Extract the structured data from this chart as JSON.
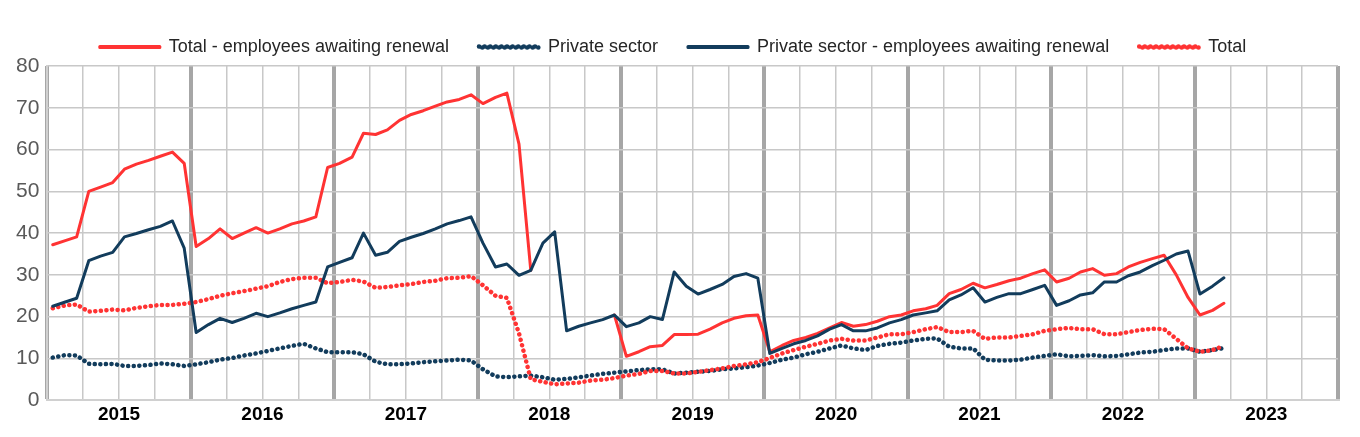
{
  "chart_data": {
    "type": "line",
    "x": [
      "2015-01-15",
      "2015-02-15",
      "2015-03-15",
      "2015-04-15",
      "2015-05-15",
      "2015-06-15",
      "2015-07-15",
      "2015-08-15",
      "2015-09-15",
      "2015-10-15",
      "2015-11-15",
      "2015-12-15",
      "2016-01-15",
      "2016-02-15",
      "2016-03-15",
      "2016-04-15",
      "2016-05-15",
      "2016-06-15",
      "2016-07-15",
      "2016-08-15",
      "2016-09-15",
      "2016-10-15",
      "2016-11-15",
      "2016-12-15",
      "2017-01-15",
      "2017-02-15",
      "2017-03-15",
      "2017-04-15",
      "2017-05-15",
      "2017-06-15",
      "2017-07-15",
      "2017-08-15",
      "2017-09-15",
      "2017-10-15",
      "2017-11-15",
      "2017-12-15",
      "2018-01-15",
      "2018-02-15",
      "2018-03-15",
      "2018-04-15",
      "2018-05-15",
      "2018-06-15",
      "2018-07-15",
      "2018-08-15",
      "2018-09-15",
      "2018-10-15",
      "2018-11-15",
      "2018-12-15",
      "2019-01-15",
      "2019-02-15",
      "2019-03-15",
      "2019-04-15",
      "2019-05-15",
      "2019-06-15",
      "2019-07-15",
      "2019-08-15",
      "2019-09-15",
      "2019-10-15",
      "2019-11-15",
      "2019-12-15",
      "2020-01-15",
      "2020-02-15",
      "2020-03-15",
      "2020-04-15",
      "2020-05-15",
      "2020-06-15",
      "2020-07-15",
      "2020-08-15",
      "2020-09-15",
      "2020-10-15",
      "2020-11-15",
      "2020-12-15",
      "2021-01-15",
      "2021-02-15",
      "2021-03-15",
      "2021-04-15",
      "2021-05-15",
      "2021-06-15",
      "2021-07-15",
      "2021-08-15",
      "2021-09-15",
      "2021-10-15",
      "2021-11-15",
      "2021-12-15",
      "2022-01-15",
      "2022-02-15",
      "2022-03-15",
      "2022-04-15",
      "2022-05-15",
      "2022-06-15",
      "2022-07-15",
      "2022-08-15",
      "2022-09-15",
      "2022-10-15",
      "2022-11-15",
      "2022-12-15",
      "2023-01-15",
      "2023-02-15",
      "2023-03-15"
    ],
    "series": [
      {
        "name": "Total - employees awaiting renewal",
        "color": "#ff3333",
        "line_style": "solid",
        "values": [
          37.2,
          38.2,
          39.1,
          50,
          51,
          52.1,
          55.3,
          56.5,
          57.4,
          58.4,
          59.4,
          56.7,
          36.8,
          38.7,
          41,
          38.7,
          40,
          41.3,
          40,
          41,
          42.2,
          42.9,
          43.9,
          55.7,
          56.7,
          58.2,
          63.9,
          63.6,
          64.7,
          67,
          68.4,
          69.3,
          70.4,
          71.4,
          72,
          73.1,
          71,
          72.5,
          73.5,
          61.3,
          31.1,
          null,
          null,
          null,
          null,
          null,
          null,
          20.4,
          10.5,
          11.6,
          12.8,
          13.1,
          15.7,
          15.7,
          15.8,
          17,
          18.5,
          19.6,
          20.2,
          20.4,
          11.6,
          13.1,
          14.3,
          15,
          16,
          17.3,
          18.6,
          17.7,
          18.1,
          18.9,
          20,
          20.4,
          21.4,
          21.9,
          22.7,
          25.5,
          26.5,
          28,
          26.9,
          27.7,
          28.6,
          29.2,
          30.3,
          31.2,
          28.3,
          29.2,
          30.7,
          31.5,
          29.9,
          30.3,
          31.9,
          33,
          33.9,
          34.7,
          30,
          24.6,
          20.4,
          21.5,
          23.2
        ]
      },
      {
        "name": "Private sector",
        "color": "#123c5c",
        "line_style": "dotted",
        "values": [
          10.2,
          10.8,
          10.7,
          8.7,
          8.6,
          8.7,
          8.2,
          8.2,
          8.4,
          8.8,
          8.6,
          8.2,
          8.6,
          9.1,
          9.7,
          10.1,
          10.7,
          11.2,
          11.8,
          12.4,
          13,
          13.5,
          12.4,
          11.5,
          11.5,
          11.5,
          11,
          9.2,
          8.6,
          8.6,
          8.8,
          9.1,
          9.3,
          9.5,
          9.7,
          9.5,
          7.4,
          5.7,
          5.5,
          5.7,
          5.9,
          5.5,
          4.9,
          5.1,
          5.5,
          5.9,
          6.3,
          6.6,
          6.9,
          7.2,
          7.4,
          7.4,
          6.4,
          6.6,
          6.8,
          7,
          7.4,
          7.6,
          7.9,
          8.3,
          8.9,
          9.7,
          10.2,
          11,
          11.6,
          12.4,
          13.1,
          12.4,
          12,
          13,
          13.5,
          13.8,
          14.3,
          14.7,
          14.8,
          12.8,
          12.4,
          12.4,
          9.7,
          9.5,
          9.5,
          9.7,
          10.2,
          10.6,
          11,
          10.5,
          10.6,
          10.8,
          10.5,
          10.6,
          11,
          11.4,
          11.6,
          12,
          12.4,
          12.4,
          11.6,
          12,
          12.5
        ]
      },
      {
        "name": "Private sector - employees awaiting renewal",
        "color": "#123c5c",
        "line_style": "solid",
        "values": [
          22.5,
          23.5,
          24.4,
          33.4,
          34.5,
          35.4,
          39.1,
          39.9,
          40.8,
          41.6,
          42.9,
          36.4,
          16.2,
          18.1,
          19.6,
          18.6,
          19.6,
          20.8,
          20,
          20.9,
          21.9,
          22.7,
          23.5,
          31.9,
          33,
          34.1,
          40,
          34.7,
          35.4,
          38,
          39,
          39.9,
          41,
          42.2,
          43,
          43.9,
          37.6,
          31.9,
          32.6,
          29.9,
          31.1,
          37.6,
          40.3,
          16.6,
          17.7,
          18.5,
          19.3,
          20.4,
          17.6,
          18.5,
          20,
          19.3,
          30.7,
          27.3,
          25.4,
          26.5,
          27.7,
          29.6,
          30.3,
          29.2,
          11.2,
          12.4,
          13.5,
          14.3,
          15.4,
          17,
          18.1,
          16.6,
          16.6,
          17.3,
          18.5,
          19.3,
          20.4,
          20.9,
          21.4,
          24,
          25.2,
          26.9,
          23.5,
          24.6,
          25.5,
          25.5,
          26.5,
          27.5,
          22.7,
          23.8,
          25.2,
          25.7,
          28.3,
          28.3,
          29.8,
          30.7,
          32.2,
          33.5,
          35,
          35.7,
          25.4,
          27.3,
          29.3
        ]
      },
      {
        "name": "Total",
        "color": "#ff3333",
        "line_style": "dotted",
        "values": [
          22,
          22.7,
          22.9,
          21.2,
          21.4,
          21.7,
          21.5,
          22.1,
          22.5,
          22.8,
          22.8,
          23.1,
          23.5,
          24.2,
          25,
          25.6,
          26.1,
          26.7,
          27.3,
          28.3,
          29,
          29.3,
          29.3,
          28,
          28.3,
          28.8,
          28.4,
          26.9,
          27.1,
          27.5,
          27.8,
          28.3,
          28.6,
          29.2,
          29.3,
          29.7,
          27.5,
          25,
          24.5,
          16,
          5,
          4.4,
          3.8,
          4,
          4.2,
          4.7,
          4.9,
          5.3,
          5.9,
          6.3,
          7,
          7,
          6.4,
          6.4,
          6.8,
          7.2,
          7.6,
          8.2,
          8.6,
          9.1,
          10.1,
          11.2,
          12,
          12.8,
          13.5,
          14.3,
          14.7,
          14.3,
          14.3,
          15,
          15.8,
          15.8,
          16.3,
          17,
          17.5,
          16.3,
          16.3,
          16.6,
          14.7,
          15,
          15,
          15.4,
          15.8,
          16.6,
          17,
          17.3,
          17,
          17,
          15.8,
          15.8,
          16.3,
          16.8,
          17.1,
          17,
          14.7,
          12.4,
          11.6,
          12,
          13
        ]
      }
    ],
    "xlim": [
      "2015-01-01",
      "2024-01-01"
    ],
    "xticks": [
      {
        "value": "2015-01-01",
        "label": null
      },
      {
        "value": "2015-04-01",
        "label": null
      },
      {
        "value": "2015-07-01",
        "label": "2015"
      },
      {
        "value": "2015-10-01",
        "label": null
      },
      {
        "value": "2016-01-01",
        "label": null
      },
      {
        "value": "2016-04-01",
        "label": null
      },
      {
        "value": "2016-07-01",
        "label": "2016"
      },
      {
        "value": "2016-10-01",
        "label": null
      },
      {
        "value": "2017-01-01",
        "label": null
      },
      {
        "value": "2017-04-01",
        "label": null
      },
      {
        "value": "2017-07-01",
        "label": "2017"
      },
      {
        "value": "2017-10-01",
        "label": null
      },
      {
        "value": "2018-01-01",
        "label": null
      },
      {
        "value": "2018-04-01",
        "label": null
      },
      {
        "value": "2018-07-01",
        "label": "2018"
      },
      {
        "value": "2018-10-01",
        "label": null
      },
      {
        "value": "2019-01-01",
        "label": null
      },
      {
        "value": "2019-04-01",
        "label": null
      },
      {
        "value": "2019-07-01",
        "label": "2019"
      },
      {
        "value": "2019-10-01",
        "label": null
      },
      {
        "value": "2020-01-01",
        "label": null
      },
      {
        "value": "2020-04-01",
        "label": null
      },
      {
        "value": "2020-07-01",
        "label": "2020"
      },
      {
        "value": "2020-10-01",
        "label": null
      },
      {
        "value": "2021-01-01",
        "label": null
      },
      {
        "value": "2021-04-01",
        "label": null
      },
      {
        "value": "2021-07-01",
        "label": "2021"
      },
      {
        "value": "2021-10-01",
        "label": null
      },
      {
        "value": "2022-01-01",
        "label": null
      },
      {
        "value": "2022-04-01",
        "label": null
      },
      {
        "value": "2022-07-01",
        "label": "2022"
      },
      {
        "value": "2022-10-01",
        "label": null
      },
      {
        "value": "2023-01-01",
        "label": null
      },
      {
        "value": "2023-04-01",
        "label": null
      },
      {
        "value": "2023-07-01",
        "label": "2023"
      },
      {
        "value": "2023-10-01",
        "label": null
      },
      {
        "value": "2024-01-01",
        "label": null
      }
    ],
    "ylim": [
      0,
      80
    ],
    "yticks": [
      0,
      10,
      20,
      30,
      40,
      50,
      60,
      70,
      80
    ],
    "grid": true,
    "legend": "top",
    "marker": "none"
  }
}
